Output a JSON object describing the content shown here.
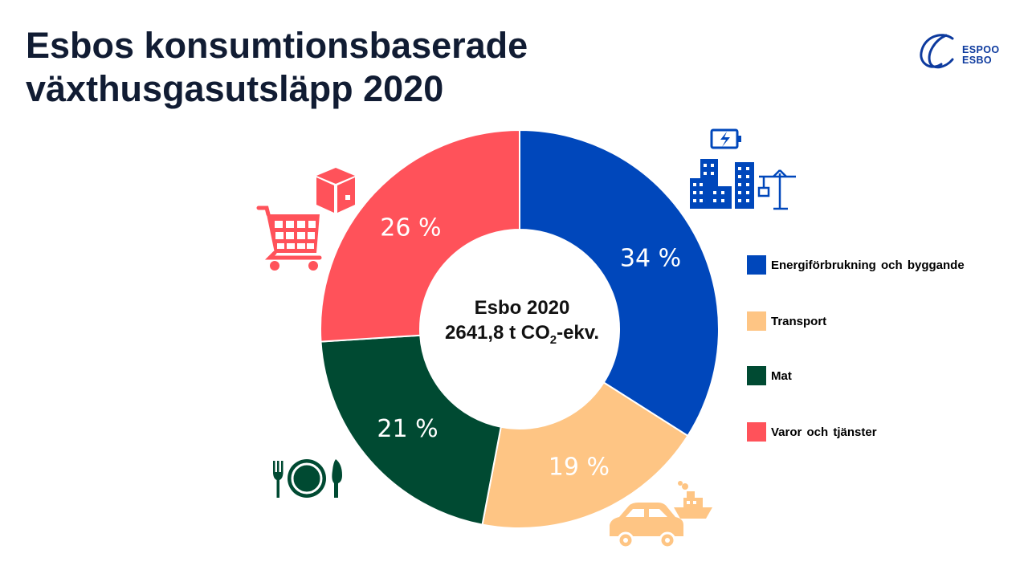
{
  "title": {
    "line1": "Esbos konsumtionsbaserade",
    "line2": "växthusgasutsläpp 2020"
  },
  "logo": {
    "line1": "ESPOO",
    "line2": "ESBO"
  },
  "center_label": {
    "line1": "Esbo 2020",
    "value": "2641,8 t CO",
    "subscript": "2",
    "suffix": "-ekv."
  },
  "icons": {
    "energy": "battery-buildings-crane-icon",
    "transport": "car-ship-icon",
    "food": "plate-cutlery-icon",
    "goods": "cart-box-icon"
  },
  "chart_data": {
    "type": "pie",
    "variant": "donut",
    "unit": "%",
    "legend_position": "right",
    "categories": [
      "Energiförbrukning och byggande",
      "Transport",
      "Mat",
      "Varor och tjänster"
    ],
    "values": [
      34,
      19,
      21,
      26
    ],
    "data_labels": [
      "34 %",
      "19 %",
      "21 %",
      "26 %"
    ],
    "colors": [
      "#0047bb",
      "#fec584",
      "#004a32",
      "#ff525a"
    ]
  }
}
